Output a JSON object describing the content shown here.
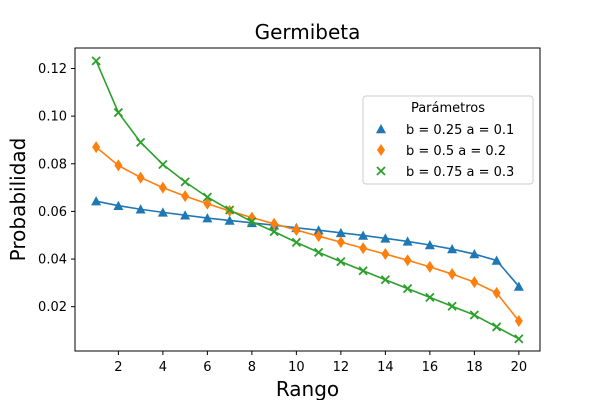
{
  "chart_data": {
    "type": "line",
    "title": "Germibeta",
    "xlabel": "Rango",
    "ylabel": "Probabilidad",
    "xlim": [
      0.05,
      20.95
    ],
    "ylim": [
      0.0014,
      0.1286
    ],
    "xticks": [
      2,
      4,
      6,
      8,
      10,
      12,
      14,
      16,
      18,
      20
    ],
    "yticks": [
      0.02,
      0.04,
      0.06,
      0.08,
      0.1,
      0.12
    ],
    "ytick_labels": [
      "0.02",
      "0.04",
      "0.06",
      "0.08",
      "0.10",
      "0.12"
    ],
    "grid": false,
    "legend": {
      "title": "Parámetros",
      "placement": "center-right"
    },
    "x": [
      1,
      2,
      3,
      4,
      5,
      6,
      7,
      8,
      9,
      10,
      11,
      12,
      13,
      14,
      15,
      16,
      17,
      18,
      19,
      20
    ],
    "series": [
      {
        "name": "b = 0.25  a = 0.1",
        "color": "#1f77b4",
        "marker": "triangle",
        "values": [
          0.0643,
          0.0624,
          0.0609,
          0.0596,
          0.0584,
          0.0572,
          0.0562,
          0.0552,
          0.0542,
          0.0531,
          0.0521,
          0.051,
          0.0499,
          0.0487,
          0.0474,
          0.0459,
          0.0442,
          0.0421,
          0.0394,
          0.0285
        ]
      },
      {
        "name": "b = 0.5  a = 0.2",
        "color": "#ff7f0e",
        "marker": "diamond",
        "values": [
          0.087,
          0.0793,
          0.0742,
          0.07,
          0.0664,
          0.0632,
          0.0602,
          0.0574,
          0.0548,
          0.0522,
          0.0496,
          0.0471,
          0.0446,
          0.0421,
          0.0395,
          0.0367,
          0.0337,
          0.0303,
          0.0258,
          0.014
        ]
      },
      {
        "name": "b = 0.75  a = 0.3",
        "color": "#2ca02c",
        "marker": "x",
        "values": [
          0.1232,
          0.1015,
          0.089,
          0.0797,
          0.0724,
          0.066,
          0.0606,
          0.0557,
          0.0515,
          0.047,
          0.0428,
          0.0389,
          0.0351,
          0.0313,
          0.0276,
          0.0239,
          0.0202,
          0.0165,
          0.0115,
          0.0065
        ]
      }
    ]
  }
}
